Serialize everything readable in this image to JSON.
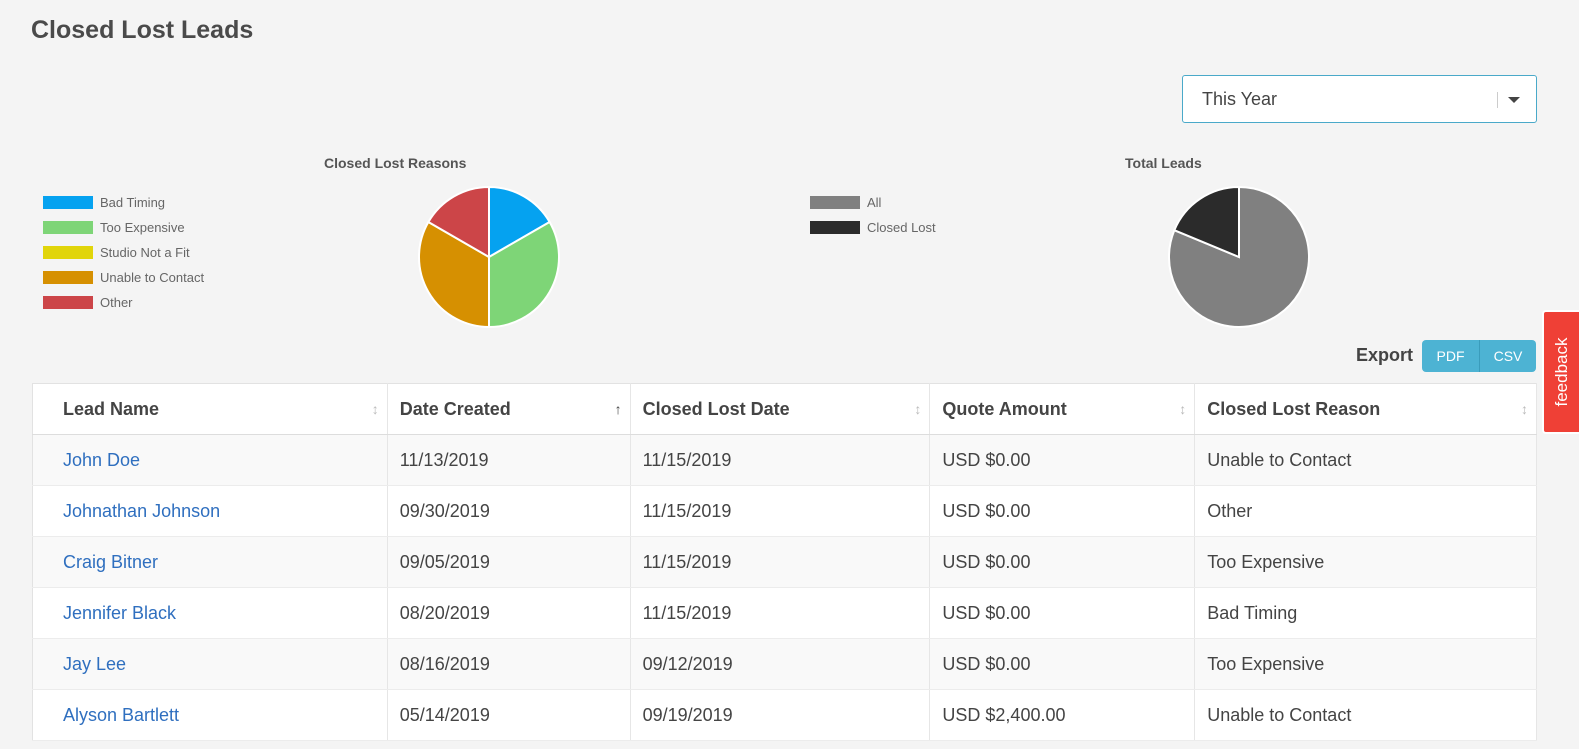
{
  "page": {
    "title": "Closed Lost Leads"
  },
  "period_filter": {
    "selected": "This Year"
  },
  "charts": {
    "reasons": {
      "title": "Closed Lost Reasons",
      "legend": [
        {
          "label": "Bad Timing",
          "color": "#05a2f0"
        },
        {
          "label": "Too Expensive",
          "color": "#7ed577"
        },
        {
          "label": "Studio Not a Fit",
          "color": "#e1d50a"
        },
        {
          "label": "Unable to Contact",
          "color": "#d69001"
        },
        {
          "label": "Other",
          "color": "#cc4548"
        }
      ]
    },
    "totals": {
      "title": "Total Leads",
      "legend": [
        {
          "label": "All",
          "color": "#808080"
        },
        {
          "label": "Closed Lost",
          "color": "#2b2b2b"
        }
      ]
    }
  },
  "chart_data": [
    {
      "type": "pie",
      "title": "Closed Lost Reasons",
      "labels": [
        "Bad Timing",
        "Too Expensive",
        "Studio Not a Fit",
        "Unable to Contact",
        "Other"
      ],
      "values": [
        1,
        2,
        0,
        2,
        1
      ],
      "colors": [
        "#05a2f0",
        "#7ed577",
        "#e1d50a",
        "#d69001",
        "#cc4548"
      ]
    },
    {
      "type": "pie",
      "title": "Total Leads",
      "labels": [
        "All",
        "Closed Lost"
      ],
      "values": [
        26,
        6
      ],
      "colors": [
        "#808080",
        "#2b2b2b"
      ]
    }
  ],
  "export": {
    "label": "Export",
    "pdf": "PDF",
    "csv": "CSV"
  },
  "feedback": {
    "label": "feedback"
  },
  "table": {
    "headers": [
      "Lead Name",
      "Date Created",
      "Closed Lost Date",
      "Quote Amount",
      "Closed Lost Reason"
    ],
    "sort_icons": [
      "↕",
      "↑",
      "↕",
      "↕",
      "↕"
    ],
    "rows": [
      [
        "John Doe",
        "11/13/2019",
        "11/15/2019",
        "USD $0.00",
        "Unable to Contact"
      ],
      [
        "Johnathan Johnson",
        "09/30/2019",
        "11/15/2019",
        "USD $0.00",
        "Other"
      ],
      [
        "Craig Bitner",
        "09/05/2019",
        "11/15/2019",
        "USD $0.00",
        "Too Expensive"
      ],
      [
        "Jennifer Black",
        "08/20/2019",
        "11/15/2019",
        "USD $0.00",
        "Bad Timing"
      ],
      [
        "Jay Lee",
        "08/16/2019",
        "09/12/2019",
        "USD $0.00",
        "Too Expensive"
      ],
      [
        "Alyson Bartlett",
        "05/14/2019",
        "09/19/2019",
        "USD $2,400.00",
        "Unable to Contact"
      ]
    ]
  }
}
